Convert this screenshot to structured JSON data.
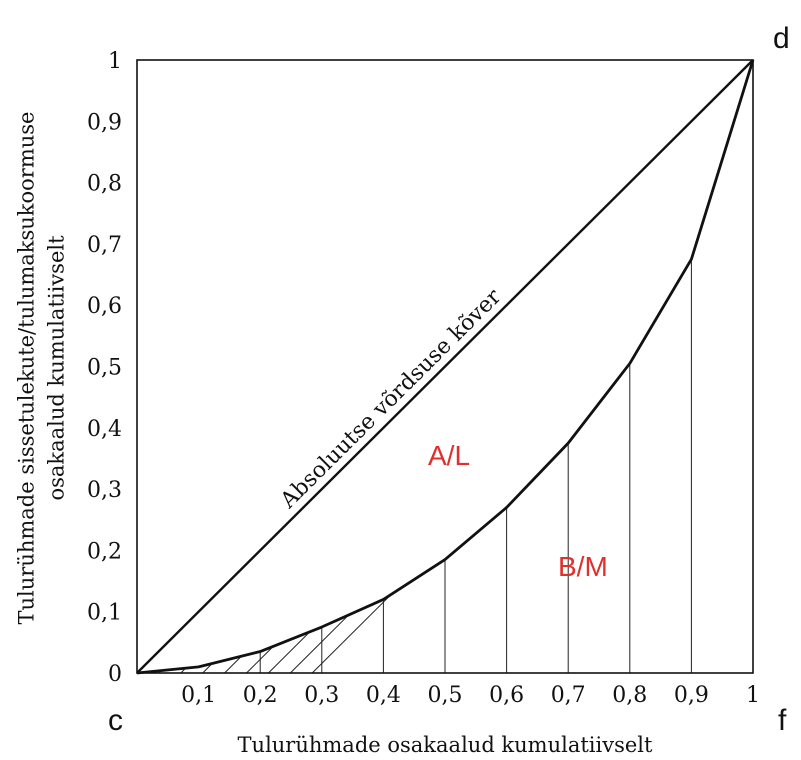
{
  "chart_data": {
    "type": "line",
    "xlabel": "Tulurühmade osakaalud kumulatiivselt",
    "ylabel_line1": "Tulurühmade sissetulekute/tulumaksukoormuse",
    "ylabel_line2": "osakaalud kumulatiivselt",
    "x_ticks": [
      "0,1",
      "0,2",
      "0,3",
      "0,4",
      "0,5",
      "0,6",
      "0,7",
      "0,8",
      "0,9",
      "1"
    ],
    "y_ticks": [
      "0",
      "0,1",
      "0,2",
      "0,3",
      "0,4",
      "0,5",
      "0,6",
      "0,7",
      "0,8",
      "0,9",
      "1"
    ],
    "xlim": [
      0,
      1
    ],
    "ylim": [
      0,
      1
    ],
    "equality_label": "Absoluutse võrdsuse kõver",
    "region_labels": {
      "upper": "A/L",
      "lower": "B/M"
    },
    "corner_labels": {
      "top_right": "d",
      "bottom_left": "c",
      "bottom_right": "f"
    },
    "series": [
      {
        "name": "Absoluutse võrdsuse kõver",
        "x": [
          0,
          1
        ],
        "y": [
          0,
          1
        ]
      },
      {
        "x": [
          0,
          0.1,
          0.2,
          0.3,
          0.4,
          0.5,
          0.6,
          0.7,
          0.8,
          0.9,
          1
        ],
        "y": [
          0,
          0.01,
          0.035,
          0.075,
          0.12,
          0.185,
          0.27,
          0.375,
          0.505,
          0.675,
          1
        ]
      }
    ]
  }
}
